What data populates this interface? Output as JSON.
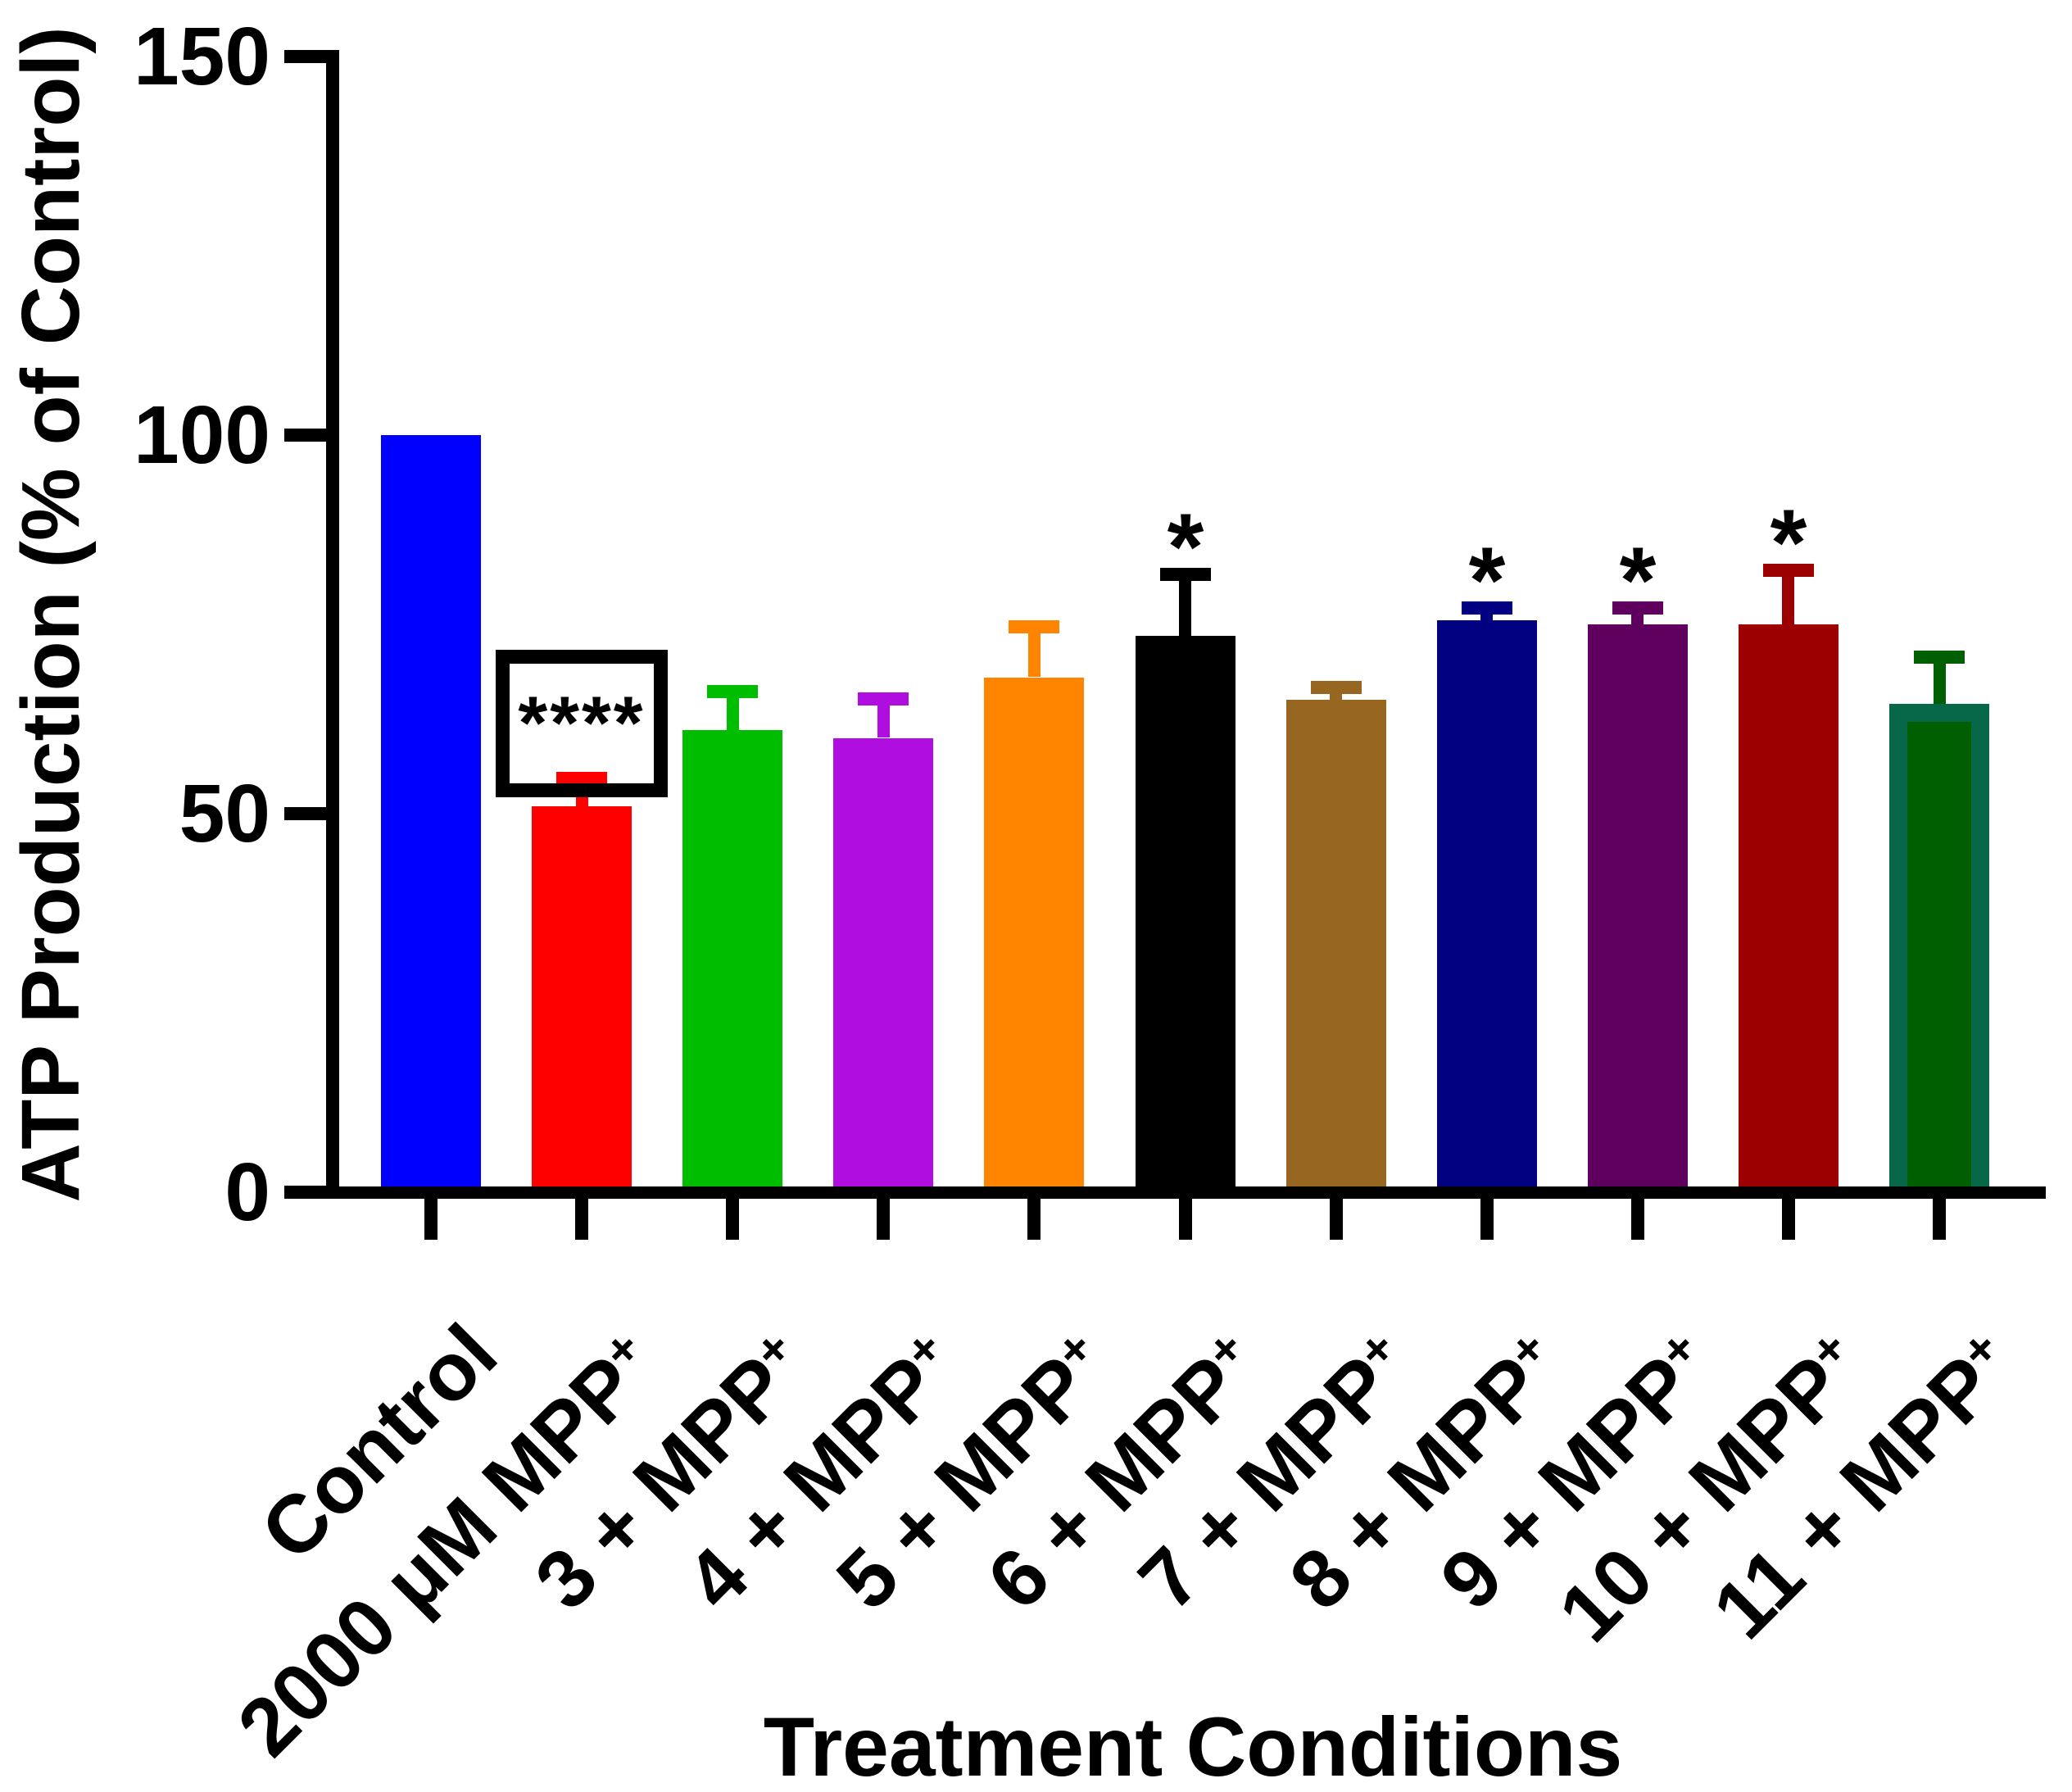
{
  "chart_data": {
    "type": "bar",
    "title": "",
    "xlabel": "Treatment Conditions",
    "ylabel": "ATP Production (% of Control)",
    "ylim": [
      0,
      150
    ],
    "yticks": [
      0,
      50,
      100,
      150
    ],
    "grid": false,
    "legend": false,
    "error_bars": "upward SEM with caps",
    "bars": [
      {
        "label": "Control",
        "label_sup": "",
        "value": 100,
        "sem": 0,
        "color": "#0000FF",
        "sig": "",
        "sig_boxed": false
      },
      {
        "label": "2000 μM MPP",
        "label_sup": "+",
        "value": 51,
        "sem": 4.5,
        "color": "#FF0000",
        "sig": "****",
        "sig_boxed": true
      },
      {
        "label": "3 + MPP",
        "label_sup": "+",
        "value": 61,
        "sem": 6,
        "color": "#00BD00",
        "sig": "",
        "sig_boxed": false
      },
      {
        "label": "4 + MPP",
        "label_sup": "+",
        "value": 60,
        "sem": 6,
        "color": "#B00DE0",
        "sig": "",
        "sig_boxed": false
      },
      {
        "label": "5 + MPP",
        "label_sup": "+",
        "value": 68,
        "sem": 7.5,
        "color": "#FF8400",
        "sig": "",
        "sig_boxed": false
      },
      {
        "label": "6 + MPP",
        "label_sup": "+",
        "value": 73.5,
        "sem": 9,
        "color": "#000000",
        "sig": "*",
        "sig_boxed": false
      },
      {
        "label": "7 + MPP",
        "label_sup": "+",
        "value": 65,
        "sem": 2.5,
        "color": "#976722",
        "sig": "",
        "sig_boxed": false
      },
      {
        "label": "8 + MPP",
        "label_sup": "+",
        "value": 75.5,
        "sem": 2.5,
        "color": "#000080",
        "sig": "*",
        "sig_boxed": false
      },
      {
        "label": "9 + MPP",
        "label_sup": "+",
        "value": 75,
        "sem": 3,
        "color": "#5F005F",
        "sig": "*",
        "sig_boxed": false
      },
      {
        "label": "10 + MPP",
        "label_sup": "+",
        "value": 75,
        "sem": 8,
        "color": "#9D0000",
        "sig": "*",
        "sig_boxed": false
      },
      {
        "label": "11 + MPP",
        "label_sup": "+",
        "value": 64.5,
        "sem": 7,
        "color": "#005F00",
        "border_color": "#076749",
        "sig": "",
        "sig_boxed": false
      }
    ]
  }
}
